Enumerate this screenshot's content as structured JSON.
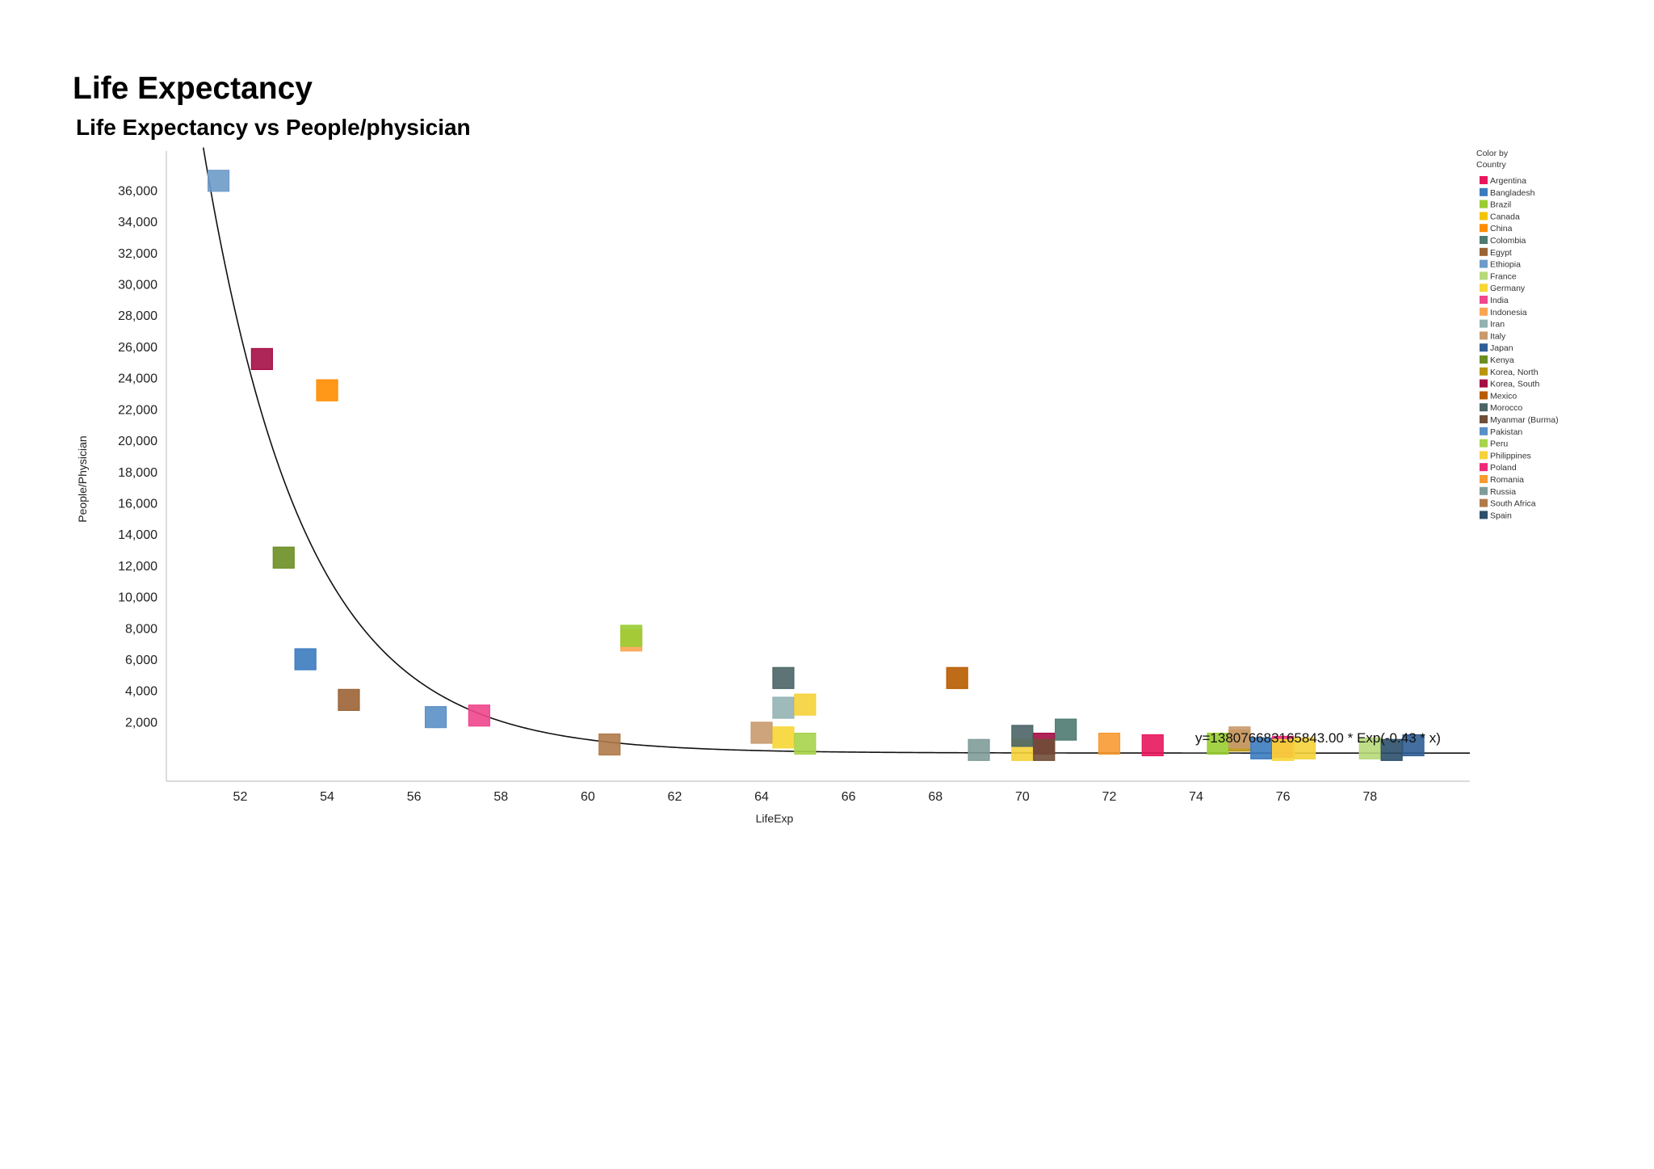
{
  "chart_data": {
    "type": "scatter",
    "title": "Life Expectancy",
    "subtitle": "Life Expectancy vs People/physician",
    "xlabel": "LifeExp",
    "ylabel": "People/Physician",
    "xlim": [
      50.3,
      80.3
    ],
    "ylim": [
      -1800,
      38500
    ],
    "x_ticks": [
      52,
      54,
      56,
      58,
      60,
      62,
      64,
      66,
      68,
      70,
      72,
      74,
      76,
      78
    ],
    "y_ticks": [
      2000,
      4000,
      6000,
      8000,
      10000,
      12000,
      14000,
      16000,
      18000,
      20000,
      22000,
      24000,
      26000,
      28000,
      30000,
      32000,
      34000,
      36000
    ],
    "grid": false,
    "trendline": {
      "type": "exponential",
      "a": 138076683165843,
      "b": -0.43,
      "label": "y=138076683165843.00 * Exp(-0.43 * x)"
    },
    "legend": {
      "placement": "right",
      "title": "Color by Country",
      "entries": [
        {
          "name": "Argentina",
          "color": "#E8175D"
        },
        {
          "name": "Bangladesh",
          "color": "#3B7BBF"
        },
        {
          "name": "Brazil",
          "color": "#9ACD32"
        },
        {
          "name": "Canada",
          "color": "#F2C500"
        },
        {
          "name": "China",
          "color": "#FF8C00"
        },
        {
          "name": "Colombia",
          "color": "#4E7A72"
        },
        {
          "name": "Egypt",
          "color": "#9B6335"
        },
        {
          "name": "Ethiopia",
          "color": "#6E9BC9"
        },
        {
          "name": "France",
          "color": "#B8D97A"
        },
        {
          "name": "Germany",
          "color": "#F7D635"
        },
        {
          "name": "India",
          "color": "#F0468C"
        },
        {
          "name": "Indonesia",
          "color": "#FBA552"
        },
        {
          "name": "Iran",
          "color": "#93B2B2"
        },
        {
          "name": "Italy",
          "color": "#C99A6E"
        },
        {
          "name": "Japan",
          "color": "#2F5E95"
        },
        {
          "name": "Kenya",
          "color": "#6B8E23"
        },
        {
          "name": "Korea, North",
          "color": "#B8960B"
        },
        {
          "name": "Korea, South",
          "color": "#A50D45"
        },
        {
          "name": "Mexico",
          "color": "#B85C00"
        },
        {
          "name": "Morocco",
          "color": "#4B6466"
        },
        {
          "name": "Myanmar (Burma)",
          "color": "#6F4E37"
        },
        {
          "name": "Pakistan",
          "color": "#5B8FC7"
        },
        {
          "name": "Peru",
          "color": "#A7D44A"
        },
        {
          "name": "Philippines",
          "color": "#F5D23A"
        },
        {
          "name": "Poland",
          "color": "#EC2A78"
        },
        {
          "name": "Romania",
          "color": "#F89A32"
        },
        {
          "name": "Russia",
          "color": "#7F9C9A"
        },
        {
          "name": "South Africa",
          "color": "#B07A4A"
        },
        {
          "name": "Spain",
          "color": "#2C4F6A"
        }
      ]
    },
    "points": [
      {
        "country": "Ethiopia",
        "x": 51.5,
        "y": 36600
      },
      {
        "country": "Korea, South",
        "x": 52.5,
        "y": 25200
      },
      {
        "country": "China",
        "x": 54.0,
        "y": 23200
      },
      {
        "country": "Kenya",
        "x": 53.0,
        "y": 12500
      },
      {
        "country": "Bangladesh",
        "x": 53.5,
        "y": 6000
      },
      {
        "country": "Egypt",
        "x": 54.5,
        "y": 3400
      },
      {
        "country": "Pakistan",
        "x": 56.5,
        "y": 2300
      },
      {
        "country": "India",
        "x": 57.5,
        "y": 2400
      },
      {
        "country": "South Africa",
        "x": 60.5,
        "y": 550
      },
      {
        "country": "Indonesia",
        "x": 61.0,
        "y": 7200
      },
      {
        "country": "Brazil",
        "x": 61.0,
        "y": 7500
      },
      {
        "country": "Morocco",
        "x": 64.5,
        "y": 4800
      },
      {
        "country": "Iran",
        "x": 64.5,
        "y": 2900
      },
      {
        "country": "Philippines",
        "x": 65.0,
        "y": 3100
      },
      {
        "country": "Italy",
        "x": 64.0,
        "y": 1300
      },
      {
        "country": "Germany",
        "x": 64.5,
        "y": 1000
      },
      {
        "country": "Peru",
        "x": 65.0,
        "y": 600
      },
      {
        "country": "Mexico",
        "x": 68.5,
        "y": 4800
      },
      {
        "country": "Russia",
        "x": 69.0,
        "y": 200
      },
      {
        "country": "Philippines",
        "x": 70.0,
        "y": 200
      },
      {
        "country": "Korea, South",
        "x": 70.5,
        "y": 600
      },
      {
        "country": "Morocco",
        "x": 70.0,
        "y": 1100
      },
      {
        "country": "Myanmar (Burma)",
        "x": 70.5,
        "y": 200
      },
      {
        "country": "Colombia",
        "x": 71.0,
        "y": 1500
      },
      {
        "country": "Romania",
        "x": 72.0,
        "y": 600
      },
      {
        "country": "Argentina",
        "x": 73.0,
        "y": 500
      },
      {
        "country": "Brazil",
        "x": 74.5,
        "y": 600
      },
      {
        "country": "Korea, North",
        "x": 75.0,
        "y": 800
      },
      {
        "country": "Italy",
        "x": 75.0,
        "y": 1000
      },
      {
        "country": "Bangladesh",
        "x": 75.5,
        "y": 300
      },
      {
        "country": "Poland",
        "x": 76.0,
        "y": 400
      },
      {
        "country": "Germany",
        "x": 76.0,
        "y": 200
      },
      {
        "country": "Philippines",
        "x": 76.5,
        "y": 300
      },
      {
        "country": "France",
        "x": 78.0,
        "y": 300
      },
      {
        "country": "Spain",
        "x": 78.5,
        "y": 200
      },
      {
        "country": "Japan",
        "x": 79.0,
        "y": 500
      }
    ]
  }
}
